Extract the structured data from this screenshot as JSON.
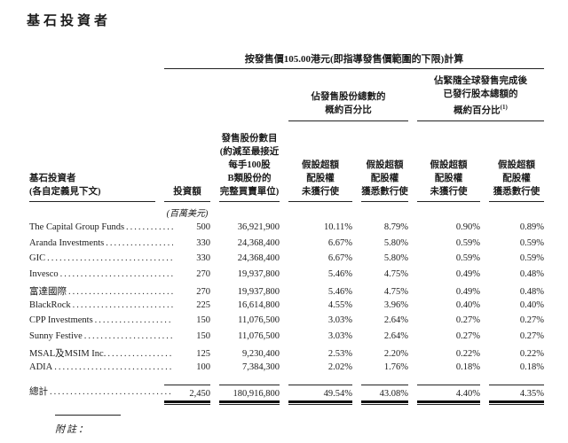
{
  "page": {
    "title": "基石投資者",
    "notes_label": "附註："
  },
  "table": {
    "price_header": "按發售價105.00港元(即指導發售價範圍的下限)計算",
    "group_headers": [
      {
        "lines": [
          "佔發售股份總數的",
          "概約百分比"
        ]
      },
      {
        "lines": [
          "佔緊隨全球發售完成後",
          "已發行股本總額的",
          "概約百分比"
        ],
        "superscript": "(1)"
      }
    ],
    "columns": [
      {
        "id": "investor",
        "header_lines": [
          "基石投資者",
          "(各自定義見下文)"
        ]
      },
      {
        "id": "amount",
        "header_lines": [
          "投資額"
        ],
        "subheader": "(百萬美元)"
      },
      {
        "id": "shares",
        "header_lines": [
          "發售股份數目",
          "(約減至最接近",
          "每手100股",
          "B類股份的",
          "完整買賣單位)"
        ]
      },
      {
        "id": "pct-offer-no-exercise",
        "header_lines": [
          "假設超額",
          "配股權",
          "未獲行使"
        ]
      },
      {
        "id": "pct-offer-full-exercise",
        "header_lines": [
          "假設超額",
          "配股權",
          "獲悉數行使"
        ]
      },
      {
        "id": "pct-capital-no-exercise",
        "header_lines": [
          "假設超額",
          "配股權",
          "未獲行使"
        ]
      },
      {
        "id": "pct-capital-full-exercise",
        "header_lines": [
          "假設超額",
          "配股權",
          "獲悉數行使"
        ]
      }
    ],
    "rows": [
      {
        "name": "The Capital Group Funds",
        "amount": "500",
        "shares": "36,921,900",
        "p1": "10.11%",
        "p2": "8.79%",
        "p3": "0.90%",
        "p4": "0.89%"
      },
      {
        "name": "Aranda Investments",
        "amount": "330",
        "shares": "24,368,400",
        "p1": "6.67%",
        "p2": "5.80%",
        "p3": "0.59%",
        "p4": "0.59%"
      },
      {
        "name": "GIC",
        "amount": "330",
        "shares": "24,368,400",
        "p1": "6.67%",
        "p2": "5.80%",
        "p3": "0.59%",
        "p4": "0.59%"
      },
      {
        "name": "Invesco",
        "amount": "270",
        "shares": "19,937,800",
        "p1": "5.46%",
        "p2": "4.75%",
        "p3": "0.49%",
        "p4": "0.48%"
      },
      {
        "name": "富達國際",
        "amount": "270",
        "shares": "19,937,800",
        "p1": "5.46%",
        "p2": "4.75%",
        "p3": "0.49%",
        "p4": "0.48%"
      },
      {
        "name": "BlackRock",
        "amount": "225",
        "shares": "16,614,800",
        "p1": "4.55%",
        "p2": "3.96%",
        "p3": "0.40%",
        "p4": "0.40%"
      },
      {
        "name": "CPP Investments",
        "amount": "150",
        "shares": "11,076,500",
        "p1": "3.03%",
        "p2": "2.64%",
        "p3": "0.27%",
        "p4": "0.27%"
      },
      {
        "name": "Sunny Festive",
        "amount": "150",
        "shares": "11,076,500",
        "p1": "3.03%",
        "p2": "2.64%",
        "p3": "0.27%",
        "p4": "0.27%"
      },
      {
        "name": "MSAL及MSIM Inc.",
        "amount": "125",
        "shares": "9,230,400",
        "p1": "2.53%",
        "p2": "2.20%",
        "p3": "0.22%",
        "p4": "0.22%"
      },
      {
        "name": "ADIA",
        "amount": "100",
        "shares": "7,384,300",
        "p1": "2.02%",
        "p2": "1.76%",
        "p3": "0.18%",
        "p4": "0.18%"
      }
    ],
    "total": {
      "name": "總計",
      "amount": "2,450",
      "shares": "180,916,800",
      "p1": "49.54%",
      "p2": "43.08%",
      "p3": "4.40%",
      "p4": "4.35%"
    }
  }
}
